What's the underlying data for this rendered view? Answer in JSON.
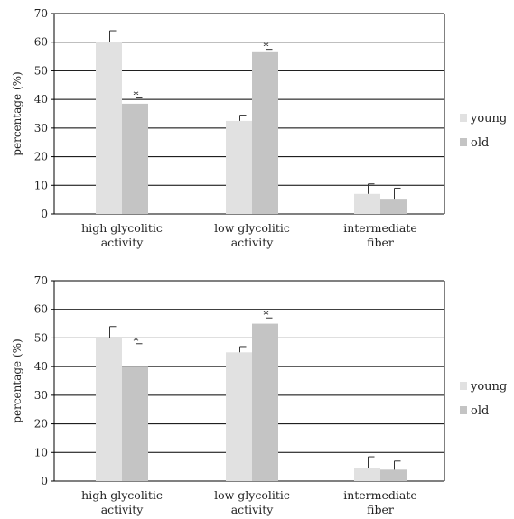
{
  "colors": {
    "young": "#e1e1e1",
    "old": "#c4c4c4",
    "grid": "#000000",
    "axis": "#000000"
  },
  "chart_data": [
    {
      "type": "bar",
      "categories": [
        [
          "high glycolitic",
          "activity"
        ],
        [
          "low glycolitic",
          "activity"
        ],
        [
          "intermediate",
          "fiber"
        ]
      ],
      "ylabel": "percentage (%)",
      "ylim": [
        0,
        70
      ],
      "yticks": [
        0,
        10,
        20,
        30,
        40,
        50,
        60,
        70
      ],
      "grid": true,
      "legend_position": "right",
      "series": [
        {
          "name": "young",
          "values": [
            60,
            32.5,
            7
          ],
          "errors": [
            4,
            2,
            3.5
          ],
          "significance": [
            "",
            "",
            ""
          ]
        },
        {
          "name": "old",
          "values": [
            38.5,
            56.5,
            5
          ],
          "errors": [
            2,
            1,
            4
          ],
          "significance": [
            "*",
            "*",
            ""
          ]
        }
      ]
    },
    {
      "type": "bar",
      "categories": [
        [
          "high glycolitic",
          "activity"
        ],
        [
          "low glycolitic",
          "activity"
        ],
        [
          "intermediate",
          "fiber"
        ]
      ],
      "ylabel": "percentage (%)",
      "ylim": [
        0,
        70
      ],
      "yticks": [
        0,
        10,
        20,
        30,
        40,
        50,
        60,
        70
      ],
      "grid": true,
      "legend_position": "right",
      "series": [
        {
          "name": "young",
          "values": [
            50,
            45,
            4.5
          ],
          "errors": [
            4,
            2,
            4
          ],
          "significance": [
            "",
            "",
            ""
          ]
        },
        {
          "name": "old",
          "values": [
            40,
            55,
            4
          ],
          "errors": [
            8,
            2,
            3
          ],
          "significance": [
            "*",
            "*",
            ""
          ]
        }
      ]
    }
  ]
}
